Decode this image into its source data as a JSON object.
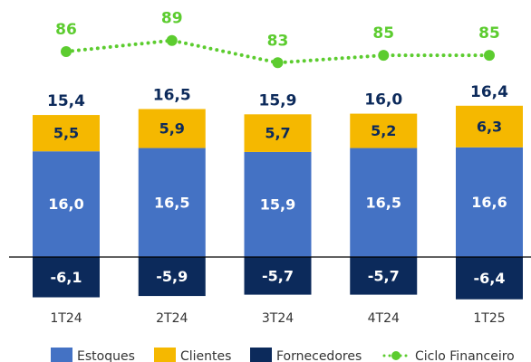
{
  "chart_data": {
    "type": "stacked-bar-line",
    "categories": [
      "1T24",
      "2T24",
      "3T24",
      "4T24",
      "1T25"
    ],
    "series": [
      {
        "name": "Estoques",
        "color": "#4472c4",
        "values": [
          16.0,
          16.5,
          15.9,
          16.5,
          16.6
        ],
        "value_labels": [
          "16,0",
          "16,5",
          "15,9",
          "16,5",
          "16,6"
        ],
        "label_color": "#ffffff"
      },
      {
        "name": "Clientes",
        "color": "#f5b800",
        "values": [
          5.5,
          5.9,
          5.7,
          5.2,
          6.3
        ],
        "value_labels": [
          "5,5",
          "5,9",
          "5,7",
          "5,2",
          "6,3"
        ],
        "label_color": "#0c2a5b"
      },
      {
        "name": "Fornecedores",
        "color": "#0c2a5b",
        "values": [
          -6.1,
          -5.9,
          -5.7,
          -5.7,
          -6.4
        ],
        "value_labels": [
          "-6,1",
          "-5,9",
          "-5,7",
          "-5,7",
          "-6,4"
        ],
        "label_color": "#ffffff"
      }
    ],
    "totals": [
      15.4,
      16.5,
      15.9,
      16.0,
      16.4
    ],
    "totals_labels": [
      "15,4",
      "16,5",
      "15,9",
      "16,0",
      "16,4"
    ],
    "line": {
      "name": "Ciclo Financeiro",
      "color": "#5ccc2f",
      "values": [
        86,
        89,
        83,
        85,
        85
      ]
    }
  }
}
